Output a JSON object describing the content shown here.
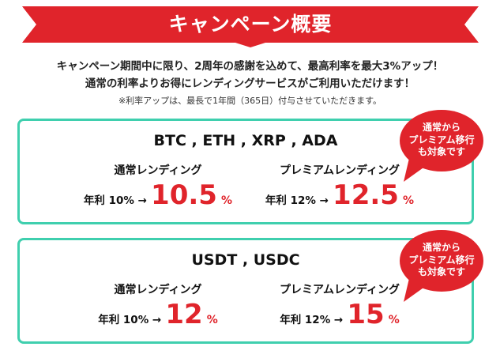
{
  "banner": {
    "title": "キャンペーン概要",
    "color": "#e0242b"
  },
  "intro": {
    "line1": "キャンペーン期間中に限り、2周年の感謝を込めて、最高利率を最大3%アップ！",
    "line2": "通常の利率よりお得にレンディングサービスがご利用いただけます！",
    "note": "※利率アップは、最長で1年間（365日）付与させていただきます。"
  },
  "colors": {
    "accent_red": "#e0242b",
    "card_border": "#3fcfae"
  },
  "cards": [
    {
      "title": "BTC , ETH , XRP , ADA",
      "normal": {
        "label": "通常レンディング",
        "prefix": "年利 10% →",
        "value": "10.5",
        "unit": "%"
      },
      "premium": {
        "label": "プレミアムレンディング",
        "prefix": "年利 12% →",
        "value": "12.5",
        "unit": "%"
      },
      "bubble": {
        "line1": "通常から",
        "line2": "プレミアム移行",
        "line3": "も対象です"
      }
    },
    {
      "title": "USDT , USDC",
      "normal": {
        "label": "通常レンディング",
        "prefix": "年利 10% →",
        "value": "12",
        "unit": "%"
      },
      "premium": {
        "label": "プレミアムレンディング",
        "prefix": "年利 12% →",
        "value": "15",
        "unit": "%"
      },
      "bubble": {
        "line1": "通常から",
        "line2": "プレミアム移行",
        "line3": "も対象です"
      }
    }
  ]
}
